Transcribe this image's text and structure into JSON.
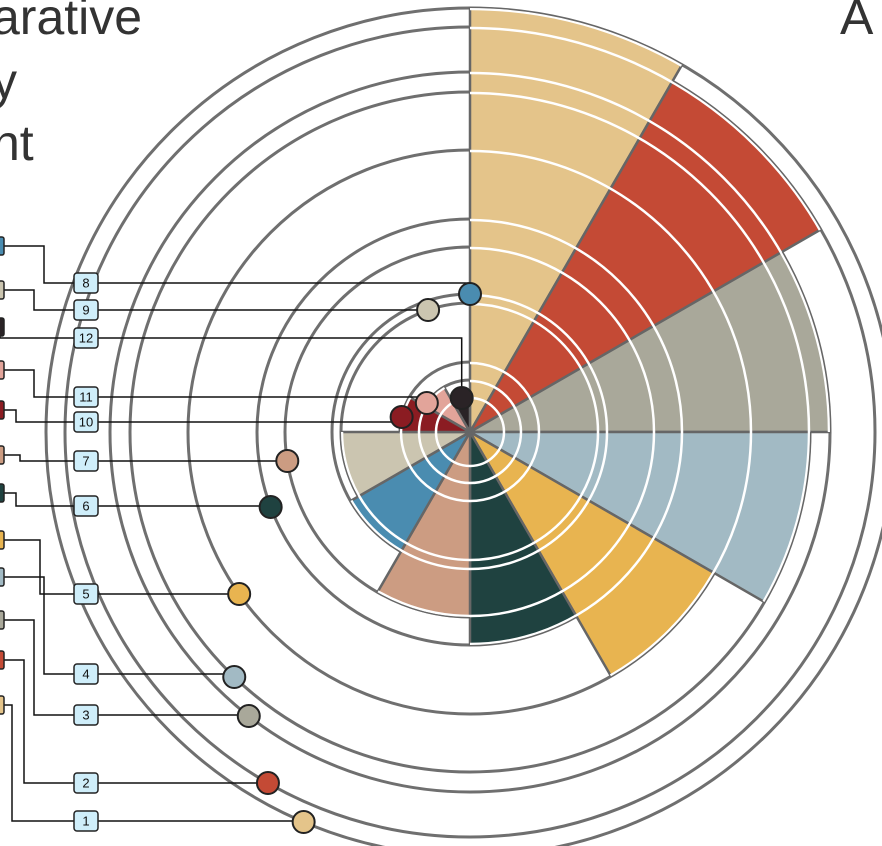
{
  "chart_data": {
    "type": "polar",
    "title_lines": [
      "arative",
      "y",
      "nt"
    ],
    "header_right": "A",
    "categories": [
      "1",
      "2",
      "3",
      "4",
      "5",
      "6",
      "7",
      "8",
      "9",
      "10",
      "11",
      "12"
    ],
    "values": [
      424,
      405,
      360,
      340,
      282,
      213,
      185,
      138,
      129,
      70,
      52,
      35
    ],
    "colors": [
      "#e4c48a",
      "#c44a35",
      "#a9a89a",
      "#a2bac4",
      "#e8b450",
      "#1f4240",
      "#cc9c82",
      "#4a8cb0",
      "#cbc5b0",
      "#8b1c22",
      "#e2a49a",
      "#2a2326"
    ]
  }
}
